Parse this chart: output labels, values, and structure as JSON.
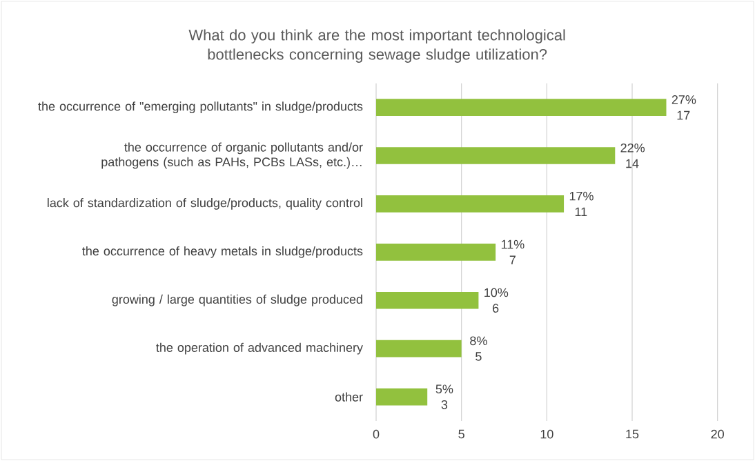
{
  "chart_data": {
    "type": "bar",
    "orientation": "horizontal",
    "title": "What do you think are the most important technological bottlenecks concerning sewage sludge utilization?",
    "categories": [
      "the occurrence of \"emerging pollutants\" in sludge/products",
      "the occurrence of organic pollutants and/or pathogens (such as PAHs, PCBs LASs, etc.)…",
      "lack of standardization of sludge/products, quality control",
      "the occurrence of heavy metals in sludge/products",
      "growing / large quantities of sludge produced",
      "the operation of advanced machinery",
      "other"
    ],
    "values": [
      17,
      14,
      11,
      7,
      6,
      5,
      3
    ],
    "value_labels": [
      "27% 17",
      "22% 14",
      "17% 11",
      "11% 7",
      "10% 6",
      "8% 5",
      "5% 3"
    ],
    "color": "#92c13e",
    "xlim": [
      0,
      20
    ],
    "xticks": [
      0,
      5,
      10,
      15,
      20
    ],
    "grid": "x"
  }
}
